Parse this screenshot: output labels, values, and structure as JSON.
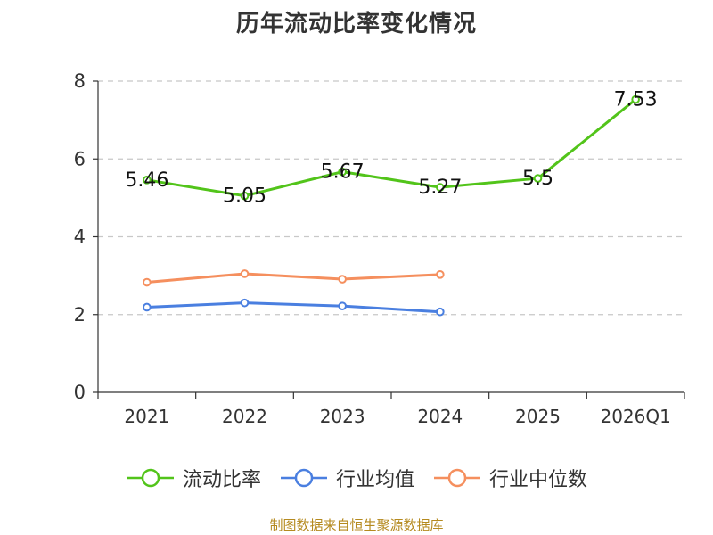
{
  "chart_data": {
    "type": "line",
    "title": "历年流动比率变化情况",
    "categories": [
      "2021",
      "2022",
      "2023",
      "2024",
      "2025",
      "2026Q1"
    ],
    "ylim": [
      0,
      8
    ],
    "yticks": [
      0,
      2,
      4,
      6,
      8
    ],
    "grid": true,
    "legend_position": "bottom",
    "xlabel": "",
    "ylabel": "",
    "series": [
      {
        "name": "流动比率",
        "color": "#52c41a",
        "values": [
          5.46,
          5.05,
          5.67,
          5.27,
          5.5,
          7.53
        ],
        "labels": [
          "5.46",
          "5.05",
          "5.67",
          "5.27",
          "5.5",
          "7.53"
        ]
      },
      {
        "name": "行业均值",
        "color": "#4a7fe0",
        "values": [
          2.19,
          2.3,
          2.22,
          2.07,
          null,
          null
        ]
      },
      {
        "name": "行业中位数",
        "color": "#f58f5e",
        "values": [
          2.83,
          3.05,
          2.91,
          3.03,
          null,
          null
        ]
      }
    ]
  },
  "source_note": "制图数据来自恒生聚源数据库"
}
